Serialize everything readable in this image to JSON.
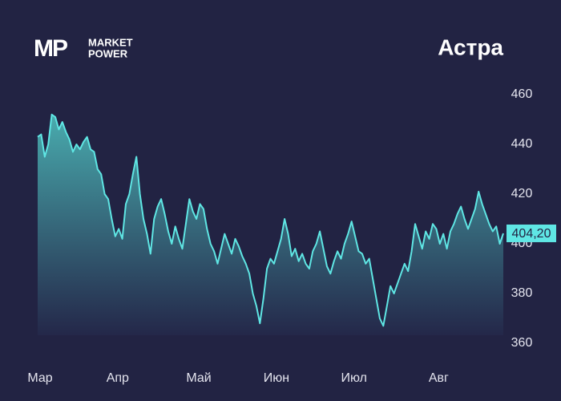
{
  "logo": {
    "mark": "MP",
    "lines": [
      "MARKET",
      "POWER"
    ]
  },
  "chart_data": {
    "type": "area",
    "title": "Астра",
    "values": [
      443,
      444,
      435,
      440,
      452,
      451,
      446,
      449,
      445,
      442,
      437,
      440,
      438,
      441,
      443,
      438,
      437,
      430,
      428,
      420,
      418,
      410,
      403,
      406,
      402,
      416,
      420,
      428,
      435,
      420,
      410,
      404,
      396,
      410,
      415,
      418,
      412,
      405,
      400,
      407,
      402,
      398,
      408,
      418,
      413,
      410,
      416,
      414,
      406,
      400,
      397,
      392,
      398,
      404,
      400,
      396,
      402,
      399,
      395,
      392,
      388,
      380,
      375,
      368,
      378,
      390,
      394,
      392,
      397,
      402,
      410,
      404,
      395,
      398,
      393,
      396,
      392,
      390,
      397,
      400,
      405,
      398,
      391,
      388,
      393,
      397,
      394,
      400,
      404,
      409,
      403,
      397,
      396,
      392,
      394,
      386,
      378,
      370,
      367,
      375,
      383,
      380,
      384,
      388,
      392,
      389,
      397,
      408,
      403,
      398,
      405,
      402,
      408,
      406,
      400,
      404,
      398,
      405,
      408,
      412,
      415,
      410,
      406,
      410,
      414,
      421,
      416,
      412,
      408,
      405,
      407,
      400,
      404.2
    ],
    "xlim": [
      0,
      132
    ],
    "xticks": [
      {
        "value": 0,
        "label": "Мар"
      },
      {
        "value": 22,
        "label": "Апр"
      },
      {
        "value": 45,
        "label": "Май"
      },
      {
        "value": 67,
        "label": "Июн"
      },
      {
        "value": 89,
        "label": "Июл"
      },
      {
        "value": 113,
        "label": "Авг"
      }
    ],
    "ylim": [
      360,
      460
    ],
    "yticks": [
      360,
      380,
      400,
      420,
      440,
      460
    ],
    "last_price": {
      "value": 404.2,
      "label": "404,20"
    },
    "color": "#5fe6e4",
    "grid": false
  }
}
